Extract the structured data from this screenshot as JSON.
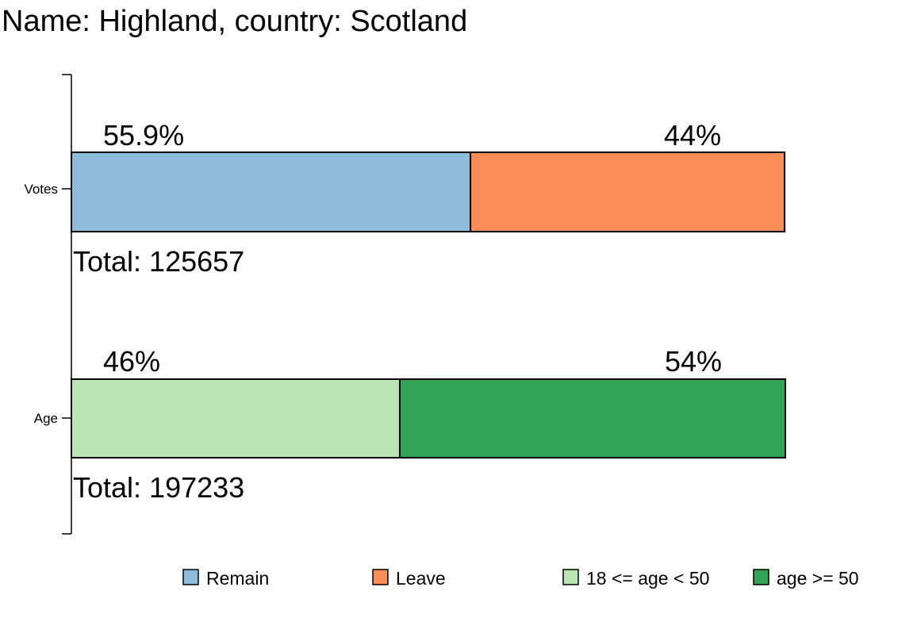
{
  "title": "Name: Highland, country: Scotland",
  "chart_data": {
    "type": "bar",
    "orientation": "horizontal",
    "stacked": true,
    "title": "Name: Highland, country: Scotland",
    "categories": [
      "Votes",
      "Age"
    ],
    "rows": [
      {
        "category": "Votes",
        "total_label": "Total: 125657",
        "segments": [
          {
            "name": "Remain",
            "value": 55.9,
            "label": "55.9%",
            "color": "#8fbcdb"
          },
          {
            "name": "Leave",
            "value": 44.0,
            "label": "44%",
            "color": "#fc8d59"
          }
        ]
      },
      {
        "category": "Age",
        "total_label": "Total: 197233",
        "segments": [
          {
            "name": "18 <= age < 50",
            "value": 46,
            "label": "46%",
            "color": "#bae4b3"
          },
          {
            "name": "age >= 50",
            "value": 54,
            "label": "54%",
            "color": "#31a354"
          }
        ]
      }
    ],
    "legend": {
      "position": "bottom",
      "entries": [
        {
          "name": "Remain",
          "color": "#8fbcdb"
        },
        {
          "name": "Leave",
          "color": "#fc8d59"
        },
        {
          "name": "18 <= age < 50",
          "color": "#bae4b3"
        },
        {
          "name": "age >= 50",
          "color": "#31a354"
        }
      ]
    },
    "xlabel": "",
    "ylabel": "",
    "grid": false
  }
}
